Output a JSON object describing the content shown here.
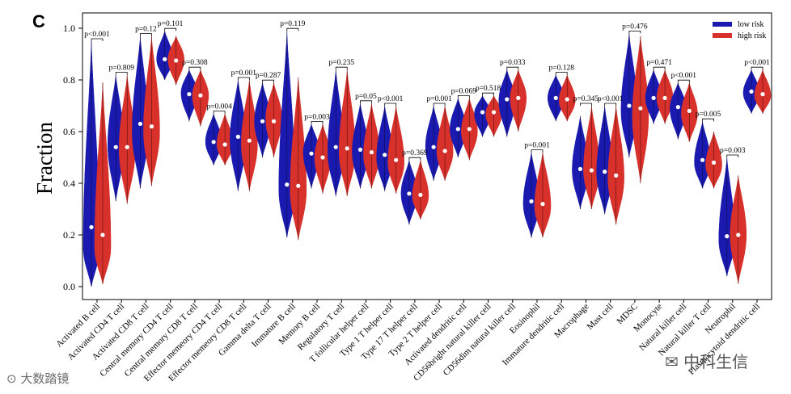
{
  "panel_letter": "C",
  "chart_data": {
    "type": "violin",
    "ylabel": "Fraction",
    "ylim": [
      0.0,
      1.0
    ],
    "yticks": [
      "0.0",
      "0.2",
      "0.4",
      "0.6",
      "0.8",
      "1.0"
    ],
    "legend": [
      {
        "name": "low   risk",
        "color": "#1a1ab0"
      },
      {
        "name": "high  risk",
        "color": "#d8302a"
      }
    ],
    "colors": {
      "low": "#1a1ab0",
      "high": "#d8302a"
    },
    "categories": [
      {
        "name": "Activated B cell",
        "p": "p<0.001",
        "low": {
          "min": 0.0,
          "max": 0.95,
          "median": 0.23,
          "mode": 0.15
        },
        "high": {
          "min": 0.01,
          "max": 0.79,
          "median": 0.2,
          "mode": 0.15
        }
      },
      {
        "name": "Activated CD4 T cell",
        "p": "p=0.809",
        "low": {
          "min": 0.33,
          "max": 0.82,
          "median": 0.54,
          "mode": 0.55
        },
        "high": {
          "min": 0.32,
          "max": 0.82,
          "median": 0.54,
          "mode": 0.53
        }
      },
      {
        "name": "Activated CD8 T cell",
        "p": "p=0.12",
        "low": {
          "min": 0.38,
          "max": 0.97,
          "median": 0.63,
          "mode": 0.6
        },
        "high": {
          "min": 0.39,
          "max": 0.97,
          "median": 0.62,
          "mode": 0.6
        }
      },
      {
        "name": "Central memory CD4 T cell",
        "p": "p=0.101",
        "low": {
          "min": 0.8,
          "max": 0.99,
          "median": 0.88,
          "mode": 0.88
        },
        "high": {
          "min": 0.78,
          "max": 0.97,
          "median": 0.875,
          "mode": 0.88
        }
      },
      {
        "name": "Central memory CD8 T cell",
        "p": "p=0.308",
        "low": {
          "min": 0.64,
          "max": 0.84,
          "median": 0.745,
          "mode": 0.75
        },
        "high": {
          "min": 0.62,
          "max": 0.84,
          "median": 0.74,
          "mode": 0.74
        }
      },
      {
        "name": "Effector memeory CD4 T cell",
        "p": "p=0.004",
        "low": {
          "min": 0.47,
          "max": 0.67,
          "median": 0.56,
          "mode": 0.56
        },
        "high": {
          "min": 0.47,
          "max": 0.67,
          "median": 0.55,
          "mode": 0.55
        }
      },
      {
        "name": "Effector memeory CD8 T cell",
        "p": "p=0.001",
        "low": {
          "min": 0.37,
          "max": 0.8,
          "median": 0.58,
          "mode": 0.57
        },
        "high": {
          "min": 0.37,
          "max": 0.8,
          "median": 0.565,
          "mode": 0.55
        }
      },
      {
        "name": "Gamma delta T cell",
        "p": "p=0.287",
        "low": {
          "min": 0.5,
          "max": 0.79,
          "median": 0.64,
          "mode": 0.64
        },
        "high": {
          "min": 0.5,
          "max": 0.79,
          "median": 0.64,
          "mode": 0.65
        }
      },
      {
        "name": "Immature  B cell",
        "p": "p=0.119",
        "low": {
          "min": 0.19,
          "max": 0.99,
          "median": 0.395,
          "mode": 0.37
        },
        "high": {
          "min": 0.18,
          "max": 0.81,
          "median": 0.39,
          "mode": 0.37
        }
      },
      {
        "name": "Memory B cell",
        "p": "p=0.003",
        "low": {
          "min": 0.38,
          "max": 0.63,
          "median": 0.515,
          "mode": 0.52
        },
        "high": {
          "min": 0.36,
          "max": 0.63,
          "median": 0.5,
          "mode": 0.5
        }
      },
      {
        "name": "Regulatory T cell",
        "p": "p=0.235",
        "low": {
          "min": 0.35,
          "max": 0.84,
          "median": 0.54,
          "mode": 0.52
        },
        "high": {
          "min": 0.35,
          "max": 0.84,
          "median": 0.535,
          "mode": 0.52
        }
      },
      {
        "name": "T follicular helper cell",
        "p": "p=0.05",
        "low": {
          "min": 0.38,
          "max": 0.71,
          "median": 0.53,
          "mode": 0.52
        },
        "high": {
          "min": 0.38,
          "max": 0.71,
          "median": 0.52,
          "mode": 0.51
        }
      },
      {
        "name": "Type 1 T helper cell",
        "p": "p<0.001",
        "low": {
          "min": 0.37,
          "max": 0.7,
          "median": 0.51,
          "mode": 0.5
        },
        "high": {
          "min": 0.36,
          "max": 0.7,
          "median": 0.49,
          "mode": 0.48
        }
      },
      {
        "name": "Type 17 T helper cell",
        "p": "p=0.369",
        "low": {
          "min": 0.24,
          "max": 0.49,
          "median": 0.36,
          "mode": 0.36
        },
        "high": {
          "min": 0.26,
          "max": 0.49,
          "median": 0.355,
          "mode": 0.35
        }
      },
      {
        "name": "Type 2 T helper cell",
        "p": "p=0.001",
        "low": {
          "min": 0.41,
          "max": 0.7,
          "median": 0.54,
          "mode": 0.54
        },
        "high": {
          "min": 0.41,
          "max": 0.7,
          "median": 0.525,
          "mode": 0.52
        }
      },
      {
        "name": "Activated dendritic cell",
        "p": "p=0.069",
        "low": {
          "min": 0.5,
          "max": 0.73,
          "median": 0.61,
          "mode": 0.61
        },
        "high": {
          "min": 0.49,
          "max": 0.73,
          "median": 0.61,
          "mode": 0.6
        }
      },
      {
        "name": "CD56bright natural killer cell",
        "p": "p=0.518",
        "low": {
          "min": 0.58,
          "max": 0.74,
          "median": 0.675,
          "mode": 0.67
        },
        "high": {
          "min": 0.58,
          "max": 0.74,
          "median": 0.675,
          "mode": 0.67
        }
      },
      {
        "name": "CD56dim natural killer cell",
        "p": "p=0.033",
        "low": {
          "min": 0.58,
          "max": 0.84,
          "median": 0.725,
          "mode": 0.72
        },
        "high": {
          "min": 0.6,
          "max": 0.84,
          "median": 0.73,
          "mode": 0.73
        }
      },
      {
        "name": "Eosinophil",
        "p": "p=0.001",
        "low": {
          "min": 0.19,
          "max": 0.52,
          "median": 0.33,
          "mode": 0.32
        },
        "high": {
          "min": 0.19,
          "max": 0.52,
          "median": 0.32,
          "mode": 0.31
        }
      },
      {
        "name": "Immature dendritic cell",
        "p": "p=0.128",
        "low": {
          "min": 0.64,
          "max": 0.82,
          "median": 0.73,
          "mode": 0.73
        },
        "high": {
          "min": 0.64,
          "max": 0.82,
          "median": 0.725,
          "mode": 0.72
        }
      },
      {
        "name": "Macrophage",
        "p": "p=0.345",
        "low": {
          "min": 0.3,
          "max": 0.66,
          "median": 0.455,
          "mode": 0.45
        },
        "high": {
          "min": 0.3,
          "max": 0.7,
          "median": 0.45,
          "mode": 0.45
        }
      },
      {
        "name": "Mast cell",
        "p": "p<0.001",
        "low": {
          "min": 0.28,
          "max": 0.7,
          "median": 0.445,
          "mode": 0.44
        },
        "high": {
          "min": 0.24,
          "max": 0.7,
          "median": 0.43,
          "mode": 0.42
        }
      },
      {
        "name": "MDSC",
        "p": "p=0.476",
        "low": {
          "min": 0.5,
          "max": 0.98,
          "median": 0.7,
          "mode": 0.68
        },
        "high": {
          "min": 0.4,
          "max": 0.97,
          "median": 0.69,
          "mode": 0.66
        }
      },
      {
        "name": "Monocyte",
        "p": "p=0.471",
        "low": {
          "min": 0.63,
          "max": 0.84,
          "median": 0.73,
          "mode": 0.73
        },
        "high": {
          "min": 0.63,
          "max": 0.84,
          "median": 0.73,
          "mode": 0.73
        }
      },
      {
        "name": "Natural killer cell",
        "p": "p<0.001",
        "low": {
          "min": 0.57,
          "max": 0.79,
          "median": 0.695,
          "mode": 0.69
        },
        "high": {
          "min": 0.56,
          "max": 0.79,
          "median": 0.68,
          "mode": 0.67
        }
      },
      {
        "name": "Natural killer T cell",
        "p": "p=0.005",
        "low": {
          "min": 0.38,
          "max": 0.64,
          "median": 0.49,
          "mode": 0.48
        },
        "high": {
          "min": 0.38,
          "max": 0.6,
          "median": 0.48,
          "mode": 0.47
        }
      },
      {
        "name": "Neutrophil",
        "p": "p=0.003",
        "low": {
          "min": 0.04,
          "max": 0.5,
          "median": 0.195,
          "mode": 0.18
        },
        "high": {
          "min": 0.01,
          "max": 0.43,
          "median": 0.2,
          "mode": 0.2
        }
      },
      {
        "name": "Plasmacytoid dendritic cell",
        "p": "p<0.001",
        "low": {
          "min": 0.67,
          "max": 0.84,
          "median": 0.755,
          "mode": 0.75
        },
        "high": {
          "min": 0.67,
          "max": 0.84,
          "median": 0.745,
          "mode": 0.74
        }
      }
    ]
  },
  "watermarks": {
    "left": "大数踏镜",
    "right": "中科生信"
  }
}
